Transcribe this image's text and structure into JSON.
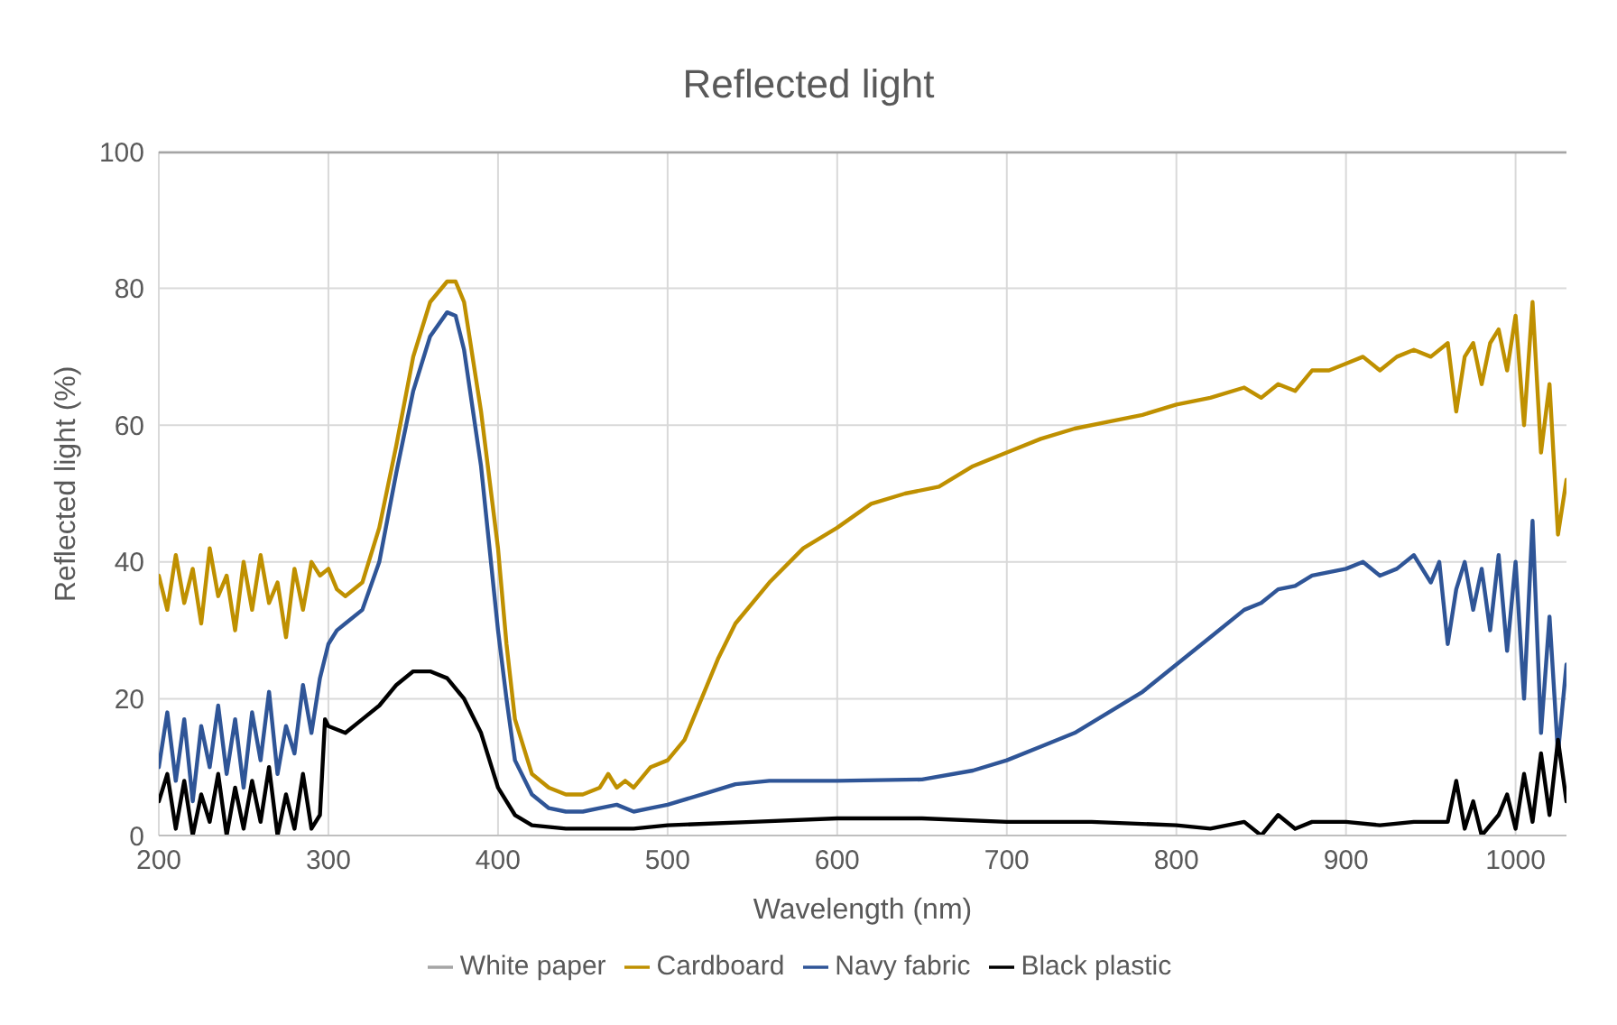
{
  "chart_data": {
    "type": "line",
    "title": "Reflected light",
    "xlabel": "Wavelength (nm)",
    "ylabel": "Reflected light (%)",
    "xlim": [
      200,
      1030
    ],
    "ylim": [
      0,
      100
    ],
    "xticks": [
      200,
      300,
      400,
      500,
      600,
      700,
      800,
      900,
      1000
    ],
    "yticks": [
      0,
      20,
      40,
      60,
      80,
      100
    ],
    "grid": true,
    "legend": "bottom",
    "marker": "none",
    "line_style": "solid",
    "series": [
      {
        "name": "White paper",
        "color": "#a5a5a5",
        "x": [
          200,
          1030
        ],
        "values": [
          100,
          100
        ]
      },
      {
        "name": "Cardboard",
        "color": "#bf9000",
        "x": [
          200,
          205,
          210,
          215,
          220,
          225,
          230,
          235,
          240,
          245,
          250,
          255,
          260,
          265,
          270,
          275,
          280,
          285,
          290,
          295,
          300,
          305,
          310,
          320,
          330,
          340,
          350,
          360,
          370,
          375,
          380,
          390,
          400,
          405,
          410,
          420,
          430,
          440,
          450,
          460,
          465,
          470,
          475,
          480,
          490,
          500,
          510,
          520,
          530,
          540,
          560,
          580,
          600,
          620,
          640,
          660,
          680,
          700,
          720,
          740,
          760,
          780,
          800,
          820,
          840,
          850,
          860,
          870,
          880,
          890,
          900,
          910,
          920,
          930,
          940,
          950,
          960,
          965,
          970,
          975,
          980,
          985,
          990,
          995,
          1000,
          1005,
          1010,
          1015,
          1020,
          1025,
          1030
        ],
        "values": [
          38,
          33,
          41,
          34,
          39,
          31,
          42,
          35,
          38,
          30,
          40,
          33,
          41,
          34,
          37,
          29,
          39,
          33,
          40,
          38,
          39,
          36,
          35,
          37,
          45,
          57,
          70,
          78,
          81,
          81,
          78,
          62,
          42,
          28,
          17,
          9,
          7,
          6,
          6,
          7,
          9,
          7,
          8,
          7,
          10,
          11,
          14,
          20,
          26,
          31,
          37,
          42,
          45,
          48.5,
          50,
          51,
          54,
          56,
          58,
          59.5,
          60.5,
          61.5,
          63,
          64,
          65.5,
          64,
          66,
          65,
          68,
          68,
          69,
          70,
          68,
          70,
          71,
          70,
          72,
          62,
          70,
          72,
          66,
          72,
          74,
          68,
          76,
          60,
          78,
          56,
          66,
          44,
          52
        ]
      },
      {
        "name": "Navy fabric",
        "color": "#2f5597",
        "x": [
          200,
          205,
          210,
          215,
          220,
          225,
          230,
          235,
          240,
          245,
          250,
          255,
          260,
          265,
          270,
          275,
          280,
          285,
          290,
          295,
          300,
          305,
          310,
          320,
          330,
          340,
          350,
          360,
          370,
          375,
          380,
          390,
          400,
          405,
          410,
          420,
          430,
          440,
          450,
          460,
          470,
          480,
          490,
          500,
          520,
          540,
          560,
          600,
          650,
          680,
          700,
          720,
          740,
          760,
          780,
          800,
          820,
          840,
          850,
          860,
          870,
          880,
          890,
          900,
          910,
          920,
          930,
          940,
          950,
          955,
          960,
          965,
          970,
          975,
          980,
          985,
          990,
          995,
          1000,
          1005,
          1010,
          1015,
          1020,
          1025,
          1030
        ],
        "values": [
          10,
          18,
          8,
          17,
          5,
          16,
          10,
          19,
          9,
          17,
          7,
          18,
          11,
          21,
          9,
          16,
          12,
          22,
          15,
          23,
          28,
          30,
          31,
          33,
          40,
          53,
          65,
          73,
          76.5,
          76,
          71,
          54,
          30,
          20,
          11,
          6,
          4,
          3.5,
          3.5,
          4,
          4.5,
          3.5,
          4,
          4.5,
          6,
          7.5,
          8,
          8,
          8.2,
          9.5,
          11,
          13,
          15,
          18,
          21,
          25,
          29,
          33,
          34,
          36,
          36.5,
          38,
          38.5,
          39,
          40,
          38,
          39,
          41,
          37,
          40,
          28,
          36,
          40,
          33,
          39,
          30,
          41,
          27,
          40,
          20,
          46,
          15,
          32,
          12,
          25
        ]
      },
      {
        "name": "Black plastic",
        "color": "#000000",
        "x": [
          200,
          205,
          210,
          215,
          220,
          225,
          230,
          235,
          240,
          245,
          250,
          255,
          260,
          265,
          270,
          275,
          280,
          285,
          290,
          295,
          298,
          300,
          310,
          320,
          330,
          340,
          350,
          360,
          370,
          380,
          390,
          400,
          410,
          420,
          440,
          460,
          480,
          500,
          550,
          600,
          650,
          700,
          750,
          800,
          820,
          840,
          850,
          860,
          870,
          880,
          900,
          920,
          940,
          960,
          965,
          970,
          975,
          980,
          990,
          995,
          1000,
          1005,
          1010,
          1015,
          1020,
          1025,
          1030
        ],
        "values": [
          5,
          9,
          1,
          8,
          0,
          6,
          2,
          9,
          0,
          7,
          1,
          8,
          2,
          10,
          0,
          6,
          1,
          9,
          1,
          3,
          17,
          16,
          15,
          17,
          19,
          22,
          24,
          24,
          23,
          20,
          15,
          7,
          3,
          1.5,
          1,
          1,
          1,
          1.5,
          2,
          2.5,
          2.5,
          2,
          2,
          1.5,
          1,
          2,
          0,
          3,
          1,
          2,
          2,
          1.5,
          2,
          2,
          8,
          1,
          5,
          0,
          3,
          6,
          1,
          9,
          2,
          12,
          3,
          14,
          5
        ]
      }
    ]
  }
}
